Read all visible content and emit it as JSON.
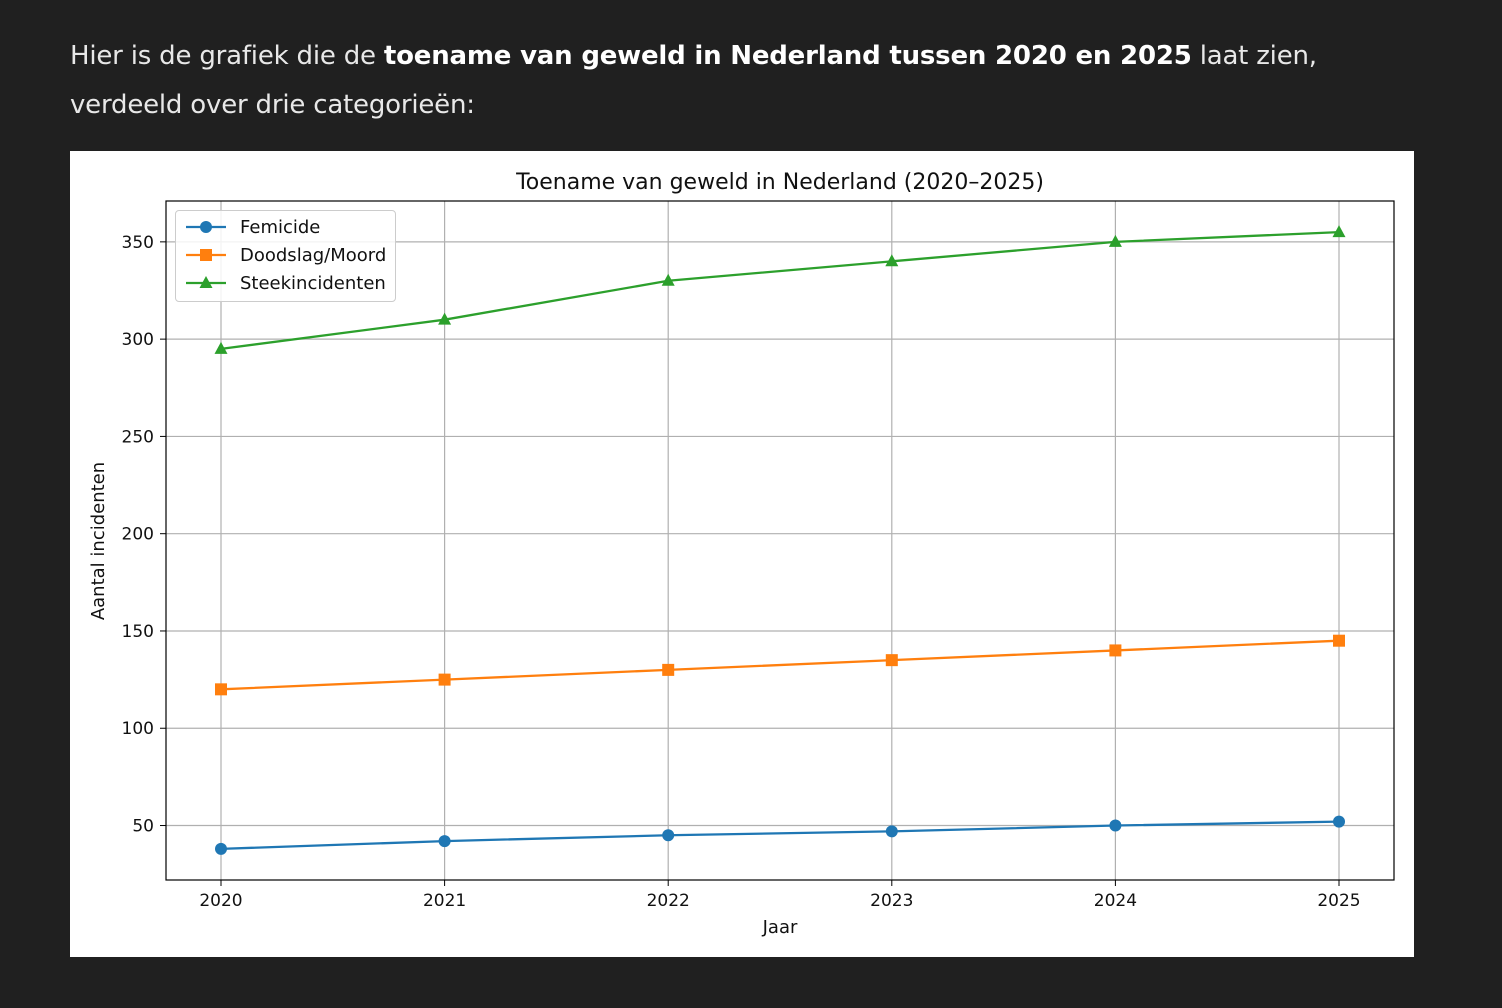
{
  "intro": {
    "prefix": "Hier is de grafiek die de ",
    "bold": "toename van geweld in Nederland tussen 2020 en 2025",
    "suffix": " laat zien, verdeeld over drie categorieën:"
  },
  "chart_data": {
    "type": "line",
    "title": "Toename van geweld in Nederland (2020–2025)",
    "xlabel": "Jaar",
    "ylabel": "Aantal incidenten",
    "x": [
      2020,
      2021,
      2022,
      2023,
      2024,
      2025
    ],
    "yticks": [
      50,
      100,
      150,
      200,
      250,
      300,
      350
    ],
    "ylim": [
      22,
      371
    ],
    "grid": true,
    "legend_position": "top-left",
    "series": [
      {
        "name": "Femicide",
        "marker": "circle",
        "color": "#1f77b4",
        "values": [
          38,
          42,
          45,
          47,
          50,
          52
        ]
      },
      {
        "name": "Doodslag/Moord",
        "marker": "square",
        "color": "#ff7f0e",
        "values": [
          120,
          125,
          130,
          135,
          140,
          145
        ]
      },
      {
        "name": "Steekincidenten",
        "marker": "triangle",
        "color": "#2ca02c",
        "values": [
          295,
          310,
          330,
          340,
          350,
          355
        ]
      }
    ]
  }
}
